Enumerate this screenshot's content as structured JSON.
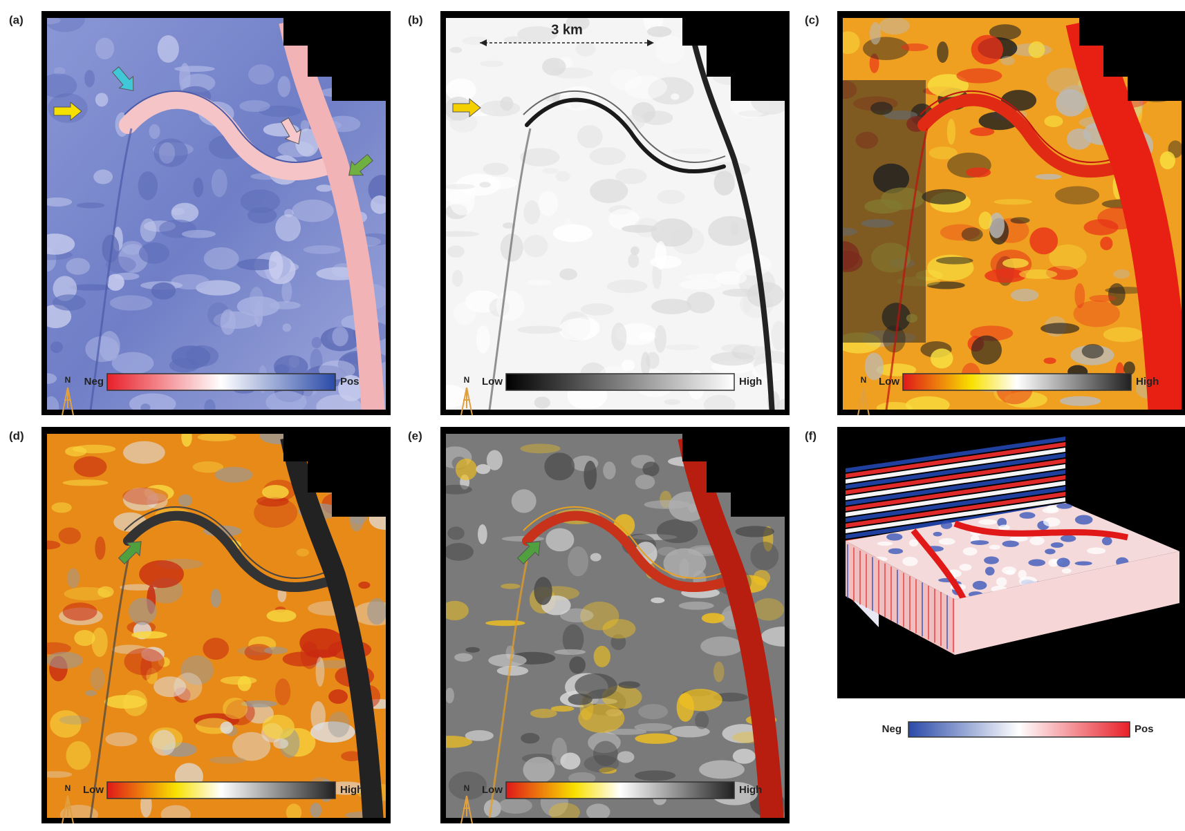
{
  "panels": [
    {
      "label": "(a)",
      "north": "N",
      "colorbar": {
        "min": "Neg",
        "max": "Pos"
      }
    },
    {
      "label": "(b)",
      "north": "N",
      "scale_bar": "3 km",
      "colorbar": {
        "min": "Low",
        "max": "High"
      }
    },
    {
      "label": "(c)",
      "north": "N",
      "colorbar": {
        "min": "Low",
        "max": "High"
      }
    },
    {
      "label": "(d)",
      "north": "N",
      "colorbar": {
        "min": "Low",
        "max": "High"
      }
    },
    {
      "label": "(e)",
      "north": "N",
      "colorbar": {
        "min": "Low",
        "max": "High"
      }
    },
    {
      "label": "(f)",
      "colorbar": {
        "min": "Neg",
        "max": "Pos"
      }
    }
  ]
}
